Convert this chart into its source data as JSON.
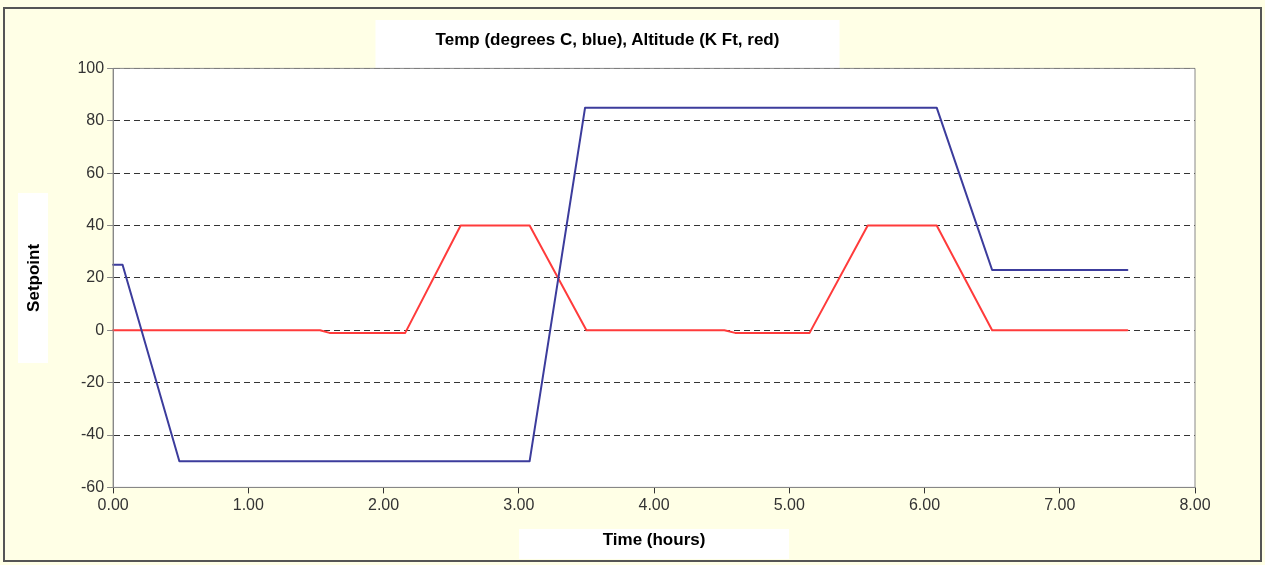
{
  "chart_data": {
    "type": "line",
    "title": "Temp (degrees C, blue), Altitude (K Ft, red)",
    "xlabel": "Time (hours)",
    "ylabel": "Setpoint",
    "series": [
      {
        "color": "#3c3c9c",
        "x": [
          0,
          0.07,
          0.49,
          3.08,
          3.49,
          6.09,
          6.5,
          7.5
        ],
        "values": [
          25,
          25,
          -50,
          -50,
          85,
          85,
          23,
          23
        ]
      },
      {
        "color": "#ff3b3b",
        "x": [
          0,
          1.53,
          1.6,
          2.16,
          2.57,
          3.08,
          3.5,
          4.52,
          4.6,
          5.15,
          5.58,
          6.09,
          6.5,
          7.5
        ],
        "values": [
          0,
          0,
          -1,
          -1,
          40,
          40,
          0,
          0,
          -1,
          -1,
          40,
          40,
          0,
          0
        ]
      }
    ],
    "xlim": [
      0,
      8
    ],
    "xticks": [
      {
        "value": 0,
        "label": "0.00"
      },
      {
        "value": 1,
        "label": "1.00"
      },
      {
        "value": 2,
        "label": "2.00"
      },
      {
        "value": 3,
        "label": "3.00"
      },
      {
        "value": 4,
        "label": "4.00"
      },
      {
        "value": 5,
        "label": "5.00"
      },
      {
        "value": 6,
        "label": "6.00"
      },
      {
        "value": 7,
        "label": "7.00"
      },
      {
        "value": 8,
        "label": "8.00"
      }
    ],
    "ylim": [
      -60,
      100
    ],
    "yticks": [
      -60,
      -40,
      -20,
      0,
      20,
      40,
      60,
      80,
      100
    ],
    "grid": "y",
    "legend": false,
    "marker": "none",
    "line_style": "solid"
  }
}
